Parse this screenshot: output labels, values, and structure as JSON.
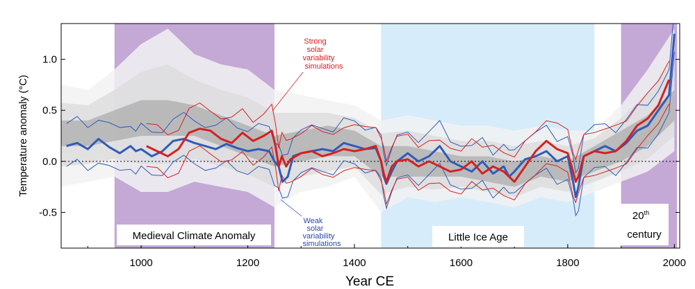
{
  "chart_data": {
    "type": "line",
    "xlabel": "Year CE",
    "ylabel": "Temperature anomaly (°C)",
    "xlim": [
      850,
      2010
    ],
    "ylim": [
      -0.85,
      1.35
    ],
    "x_ticks": [
      "1000",
      "1200",
      "1400",
      "1600",
      "1800",
      "2000"
    ],
    "y_ticks": [
      "1.0",
      "0.5",
      "0.0",
      "-0.5"
    ],
    "zero_line": "dotted",
    "periods": [
      {
        "label": "Medieval Climate Anomaly",
        "start": 950,
        "end": 1250,
        "color": "#c4a8d6"
      },
      {
        "label": "Little Ice Age",
        "start": 1450,
        "end": 1850,
        "color": "#d6ecfa"
      },
      {
        "label": "20",
        "label_sup": "th",
        "label_line2": "century",
        "start": 1900,
        "end": 2005,
        "color": "#c4a8d6"
      }
    ],
    "annotations": {
      "strong": {
        "lines": [
          "Strong",
          "solar",
          "variability",
          "simulations"
        ],
        "color": "#d42020"
      },
      "weak": {
        "lines": [
          "Weak",
          "solar",
          "variability",
          "simulations"
        ],
        "color": "#2a4aa8"
      }
    },
    "reconstruction_envelope": {
      "x": [
        850,
        900,
        950,
        1000,
        1050,
        1100,
        1150,
        1200,
        1250,
        1300,
        1350,
        1400,
        1450,
        1500,
        1550,
        1600,
        1650,
        1700,
        1750,
        1800,
        1850,
        1900,
        1950,
        2000
      ],
      "lower": [
        -0.25,
        -0.2,
        -0.15,
        -0.3,
        -0.3,
        -0.2,
        -0.25,
        -0.3,
        -0.45,
        -0.3,
        -0.25,
        -0.15,
        -0.5,
        -0.35,
        -0.4,
        -0.35,
        -0.4,
        -0.45,
        -0.35,
        -0.4,
        -0.3,
        -0.2,
        -0.1,
        0.1
      ],
      "upper": [
        0.75,
        0.7,
        0.9,
        1.15,
        1.3,
        1.05,
        0.95,
        0.9,
        0.7,
        0.65,
        0.6,
        0.55,
        0.4,
        0.45,
        0.4,
        0.35,
        0.35,
        0.3,
        0.35,
        0.3,
        0.3,
        0.55,
        0.9,
        1.3
      ]
    },
    "reconstruction_core": {
      "x": [
        850,
        900,
        950,
        1000,
        1050,
        1100,
        1150,
        1200,
        1250,
        1300,
        1350,
        1400,
        1450,
        1500,
        1550,
        1600,
        1650,
        1700,
        1750,
        1800,
        1850,
        1900,
        1950,
        2000
      ],
      "lower": [
        0.15,
        0.15,
        0.2,
        0.25,
        0.25,
        0.25,
        0.15,
        0.05,
        -0.05,
        0.0,
        0.05,
        0.05,
        -0.15,
        -0.15,
        -0.15,
        -0.15,
        -0.2,
        -0.25,
        -0.15,
        -0.2,
        -0.1,
        0.0,
        0.15,
        0.4
      ],
      "upper": [
        0.4,
        0.4,
        0.5,
        0.6,
        0.6,
        0.55,
        0.45,
        0.35,
        0.25,
        0.3,
        0.35,
        0.3,
        0.15,
        0.15,
        0.1,
        0.05,
        0.05,
        0.0,
        0.05,
        0.0,
        0.15,
        0.3,
        0.45,
        0.7
      ]
    },
    "series": [
      {
        "color": "#2f5bb8",
        "width": 3,
        "x": [
          860,
          880,
          900,
          920,
          940,
          960,
          980,
          990,
          1000,
          1020,
          1040,
          1060,
          1080,
          1100,
          1120,
          1140,
          1160,
          1180,
          1200,
          1220,
          1240,
          1250,
          1258,
          1265,
          1275,
          1285,
          1300,
          1320,
          1340,
          1360,
          1380,
          1400,
          1420,
          1440,
          1450,
          1455,
          1460,
          1470,
          1480,
          1500,
          1520,
          1540,
          1560,
          1580,
          1600,
          1620,
          1640,
          1660,
          1680,
          1690,
          1700,
          1720,
          1740,
          1760,
          1780,
          1800,
          1810,
          1815,
          1820,
          1830,
          1850,
          1870,
          1890,
          1910,
          1930,
          1950,
          1970,
          1990,
          2000
        ],
        "y": [
          0.15,
          0.18,
          0.12,
          0.22,
          0.14,
          0.08,
          0.15,
          0.1,
          0.12,
          0.05,
          0.1,
          0.2,
          0.22,
          0.18,
          0.15,
          0.12,
          0.17,
          0.13,
          0.1,
          0.12,
          0.1,
          0.0,
          -0.05,
          -0.2,
          -0.15,
          0.05,
          0.08,
          0.1,
          0.12,
          0.1,
          0.18,
          0.15,
          0.12,
          0.13,
          0.0,
          -0.15,
          -0.22,
          -0.1,
          0.0,
          0.08,
          0.0,
          0.05,
          0.15,
          0.0,
          -0.05,
          -0.1,
          0.0,
          -0.12,
          -0.05,
          -0.15,
          -0.1,
          0.02,
          0.05,
          0.1,
          0.0,
          0.05,
          -0.2,
          -0.35,
          -0.25,
          0.05,
          0.1,
          0.15,
          0.1,
          0.18,
          0.3,
          0.35,
          0.5,
          0.65,
          1.25
        ]
      },
      {
        "color": "#d42020",
        "width": 3,
        "x": [
          1010,
          1030,
          1050,
          1070,
          1090,
          1110,
          1130,
          1150,
          1170,
          1190,
          1210,
          1230,
          1245,
          1252,
          1258,
          1264,
          1272,
          1280,
          1300,
          1320,
          1340,
          1360,
          1380,
          1400,
          1420,
          1440,
          1450,
          1455,
          1460,
          1470,
          1480,
          1500,
          1520,
          1540,
          1560,
          1580,
          1600,
          1620,
          1640,
          1660,
          1680,
          1700,
          1720,
          1740,
          1760,
          1780,
          1800,
          1810,
          1815,
          1820,
          1830,
          1850,
          1870,
          1890,
          1910,
          1930,
          1950,
          1970,
          1990
        ],
        "y": [
          0.15,
          0.1,
          0.05,
          0.12,
          0.28,
          0.32,
          0.3,
          0.22,
          0.18,
          0.28,
          0.2,
          0.25,
          0.3,
          0.15,
          -0.05,
          0.05,
          -0.05,
          0.02,
          0.08,
          0.1,
          0.05,
          0.08,
          0.12,
          0.1,
          0.12,
          0.15,
          0.0,
          -0.12,
          -0.2,
          -0.05,
          0.0,
          0.02,
          -0.05,
          0.0,
          -0.05,
          -0.1,
          -0.08,
          0.0,
          -0.12,
          -0.05,
          -0.1,
          -0.2,
          -0.05,
          0.1,
          0.2,
          0.12,
          0.08,
          -0.1,
          -0.2,
          -0.15,
          0.05,
          0.1,
          0.08,
          0.1,
          0.2,
          0.35,
          0.42,
          0.55,
          0.8
        ]
      }
    ]
  }
}
